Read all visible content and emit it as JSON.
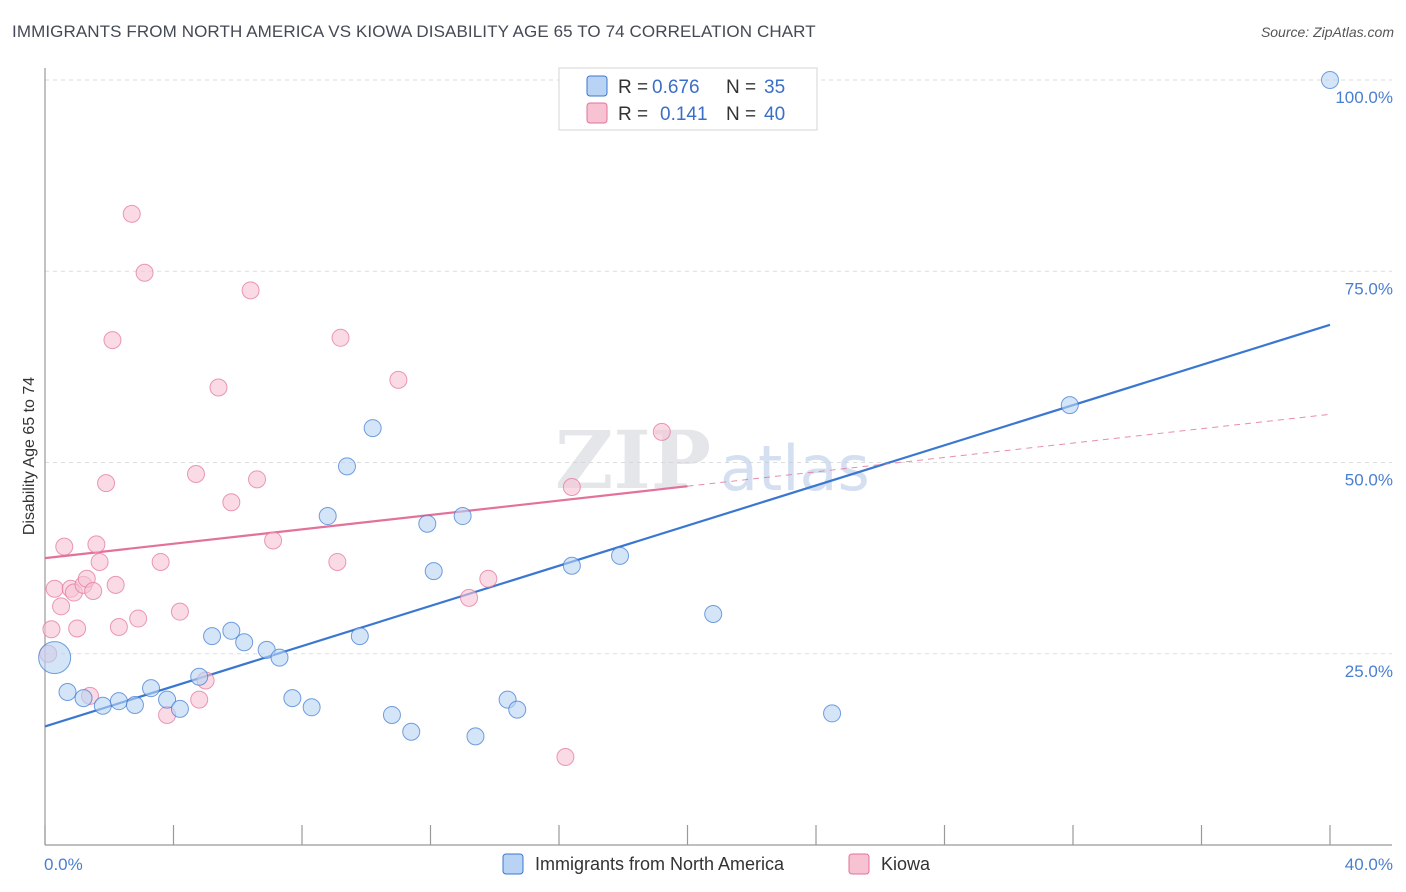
{
  "title": "IMMIGRANTS FROM NORTH AMERICA VS KIOWA DISABILITY AGE 65 TO 74 CORRELATION CHART",
  "source": "Source: ZipAtlas.com",
  "watermark": {
    "zip": "ZIP",
    "atlas": "atlas"
  },
  "colors": {
    "blue": "#3a77d1",
    "blue_fill": "#b8d3f4",
    "pink": "#e3719a",
    "pink_fill": "#f7c3d3",
    "grid": "#dddddd",
    "tick_label": "#4a7fd0"
  },
  "legend": {
    "r_label": "R =",
    "n_label": "N =",
    "rows": [
      {
        "r": "0.676",
        "n": "35"
      },
      {
        "r": "0.141",
        "n": "40"
      }
    ]
  },
  "chart_data": {
    "type": "scatter",
    "xlabel": "",
    "ylabel": "Disability Age 65 to 74",
    "xlim": [
      0,
      40
    ],
    "ylim": [
      0,
      102
    ],
    "x_tick_labels": {
      "left": "0.0%",
      "right": "40.0%"
    },
    "y_ticks": [
      {
        "value": 25,
        "label": "25.0%"
      },
      {
        "value": 50,
        "label": "50.0%"
      },
      {
        "value": 75,
        "label": "75.0%"
      },
      {
        "value": 100,
        "label": "100.0%"
      }
    ],
    "series": [
      {
        "name": "Immigrants from North America",
        "color": "blue",
        "trend": {
          "x0": 0,
          "y0": 15.5,
          "x1": 40,
          "y1": 68.0,
          "dashed_until": 40
        },
        "points": [
          {
            "x": 0.3,
            "y": 24.5,
            "big": true
          },
          {
            "x": 0.7,
            "y": 20.0
          },
          {
            "x": 1.2,
            "y": 19.2
          },
          {
            "x": 1.8,
            "y": 18.2
          },
          {
            "x": 2.3,
            "y": 18.8
          },
          {
            "x": 2.8,
            "y": 18.3
          },
          {
            "x": 3.3,
            "y": 20.5
          },
          {
            "x": 3.8,
            "y": 19.0
          },
          {
            "x": 4.2,
            "y": 17.8
          },
          {
            "x": 4.8,
            "y": 22.0
          },
          {
            "x": 5.2,
            "y": 27.3
          },
          {
            "x": 5.8,
            "y": 28.0
          },
          {
            "x": 6.2,
            "y": 26.5
          },
          {
            "x": 6.9,
            "y": 25.5
          },
          {
            "x": 7.3,
            "y": 24.5
          },
          {
            "x": 7.7,
            "y": 19.2
          },
          {
            "x": 8.3,
            "y": 18.0
          },
          {
            "x": 8.8,
            "y": 43.0
          },
          {
            "x": 9.4,
            "y": 49.5
          },
          {
            "x": 9.8,
            "y": 27.3
          },
          {
            "x": 10.2,
            "y": 54.5
          },
          {
            "x": 10.8,
            "y": 17.0
          },
          {
            "x": 11.4,
            "y": 14.8
          },
          {
            "x": 11.9,
            "y": 42.0
          },
          {
            "x": 12.1,
            "y": 35.8
          },
          {
            "x": 13.0,
            "y": 43.0
          },
          {
            "x": 13.4,
            "y": 14.2
          },
          {
            "x": 14.4,
            "y": 19.0
          },
          {
            "x": 14.7,
            "y": 17.7
          },
          {
            "x": 16.4,
            "y": 36.5
          },
          {
            "x": 17.9,
            "y": 37.8
          },
          {
            "x": 20.8,
            "y": 30.2
          },
          {
            "x": 24.5,
            "y": 17.2
          },
          {
            "x": 31.9,
            "y": 57.5
          },
          {
            "x": 40.0,
            "y": 100.0
          }
        ]
      },
      {
        "name": "Kiowa",
        "color": "pink",
        "trend": {
          "x0": 0,
          "y0": 37.5,
          "x1": 40,
          "y1": 56.3,
          "solid_until": 20
        },
        "points": [
          {
            "x": 0.1,
            "y": 25.0
          },
          {
            "x": 0.2,
            "y": 28.2
          },
          {
            "x": 0.3,
            "y": 33.5
          },
          {
            "x": 0.5,
            "y": 31.2
          },
          {
            "x": 0.6,
            "y": 39.0
          },
          {
            "x": 0.8,
            "y": 33.5
          },
          {
            "x": 0.9,
            "y": 33.0
          },
          {
            "x": 1.0,
            "y": 28.3
          },
          {
            "x": 1.2,
            "y": 34.0
          },
          {
            "x": 1.3,
            "y": 34.8
          },
          {
            "x": 1.4,
            "y": 19.5
          },
          {
            "x": 1.5,
            "y": 33.2
          },
          {
            "x": 1.6,
            "y": 39.3
          },
          {
            "x": 1.7,
            "y": 37.0
          },
          {
            "x": 1.9,
            "y": 47.3
          },
          {
            "x": 2.2,
            "y": 34.0
          },
          {
            "x": 2.3,
            "y": 28.5
          },
          {
            "x": 2.1,
            "y": 66.0
          },
          {
            "x": 2.7,
            "y": 82.5
          },
          {
            "x": 2.9,
            "y": 29.6
          },
          {
            "x": 3.1,
            "y": 74.8
          },
          {
            "x": 3.6,
            "y": 37.0
          },
          {
            "x": 3.8,
            "y": 17.0
          },
          {
            "x": 4.2,
            "y": 30.5
          },
          {
            "x": 4.7,
            "y": 48.5
          },
          {
            "x": 4.8,
            "y": 19.0
          },
          {
            "x": 5.0,
            "y": 21.5
          },
          {
            "x": 5.4,
            "y": 59.8
          },
          {
            "x": 5.8,
            "y": 44.8
          },
          {
            "x": 6.4,
            "y": 72.5
          },
          {
            "x": 6.6,
            "y": 47.8
          },
          {
            "x": 7.1,
            "y": 39.8
          },
          {
            "x": 9.1,
            "y": 37.0
          },
          {
            "x": 9.2,
            "y": 66.3
          },
          {
            "x": 11.0,
            "y": 60.8
          },
          {
            "x": 13.2,
            "y": 32.3
          },
          {
            "x": 13.8,
            "y": 34.8
          },
          {
            "x": 16.2,
            "y": 11.5
          },
          {
            "x": 16.4,
            "y": 46.8
          },
          {
            "x": 19.2,
            "y": 54.0
          }
        ]
      }
    ],
    "bottom_legend": [
      "Immigrants from North America",
      "Kiowa"
    ]
  }
}
